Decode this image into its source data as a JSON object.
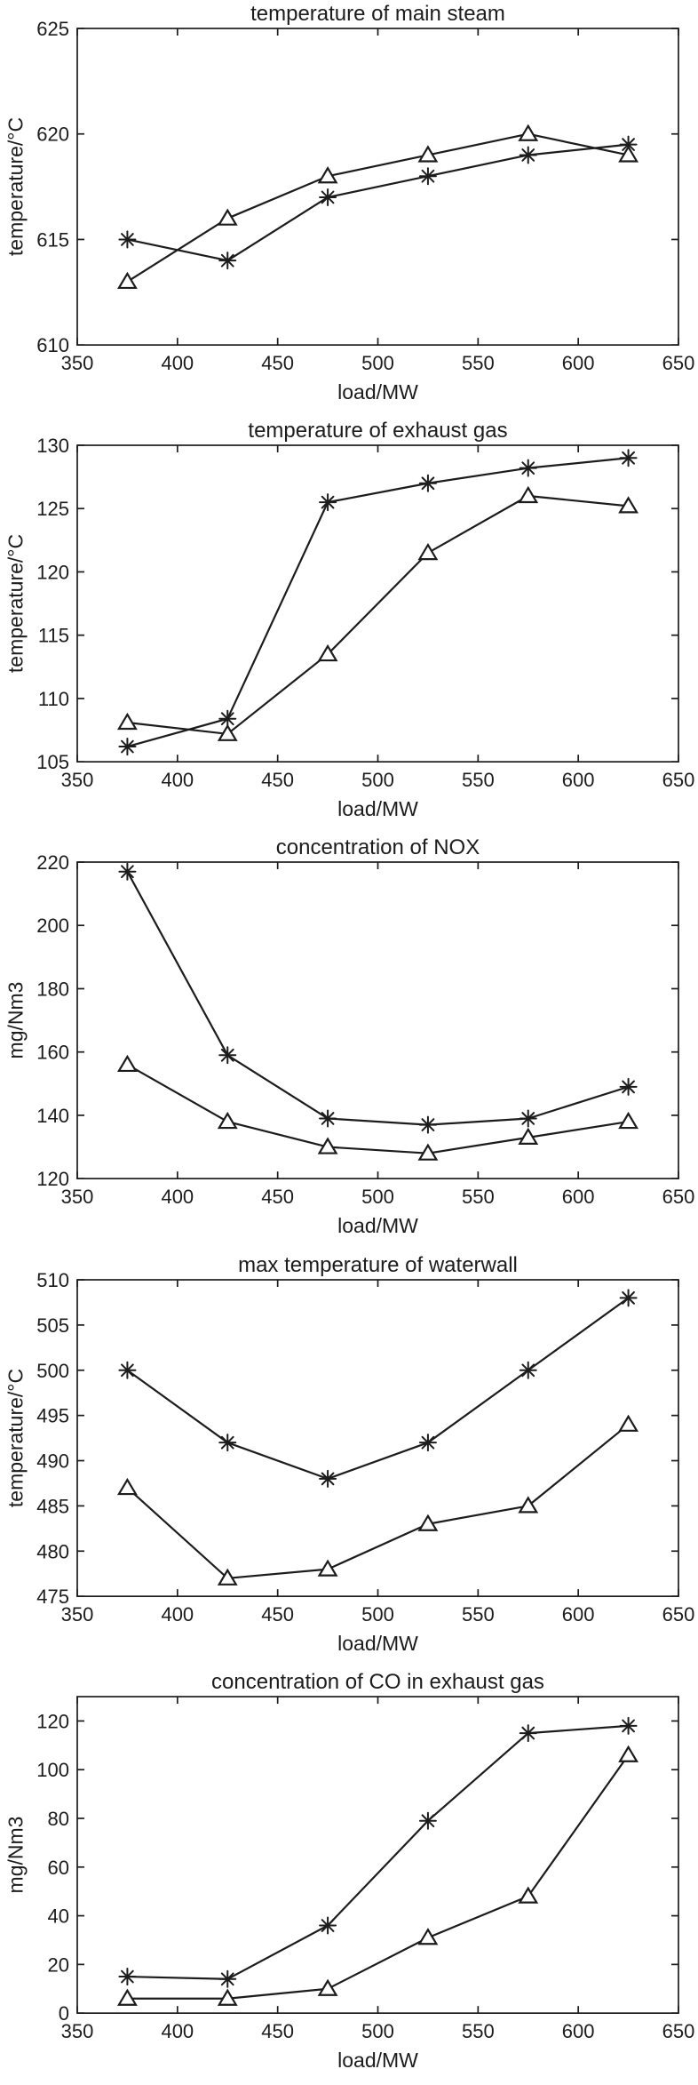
{
  "figure": {
    "background_color": "#ffffff",
    "line_color": "#1c1c1c",
    "text_color": "#1c1c1c"
  },
  "chart_data": [
    {
      "type": "line",
      "title": "temperature of main steam",
      "xlabel": "load/MW",
      "ylabel": "temperature/°C",
      "xlim": [
        350,
        650
      ],
      "ylim": [
        610,
        625
      ],
      "xticks": [
        350,
        400,
        450,
        500,
        550,
        600,
        650
      ],
      "yticks": [
        610,
        615,
        620,
        625
      ],
      "grid": false,
      "legend": "none",
      "x": [
        375,
        425,
        475,
        525,
        575,
        625
      ],
      "series": [
        {
          "name": "star-marker-series",
          "marker": "asterisk",
          "values": [
            615,
            614,
            617,
            618,
            619,
            619.5
          ]
        },
        {
          "name": "triangle-marker-series",
          "marker": "triangle",
          "values": [
            613,
            616,
            618,
            619,
            620,
            619
          ]
        }
      ]
    },
    {
      "type": "line",
      "title": "temperature of exhaust gas",
      "xlabel": "load/MW",
      "ylabel": "temperature/°C",
      "xlim": [
        350,
        650
      ],
      "ylim": [
        105,
        130
      ],
      "xticks": [
        350,
        400,
        450,
        500,
        550,
        600,
        650
      ],
      "yticks": [
        105,
        110,
        115,
        120,
        125,
        130
      ],
      "grid": false,
      "legend": "none",
      "x": [
        375,
        425,
        475,
        525,
        575,
        625
      ],
      "series": [
        {
          "name": "star-marker-series",
          "marker": "asterisk",
          "values": [
            106.2,
            108.4,
            125.5,
            127,
            128.2,
            129
          ]
        },
        {
          "name": "triangle-marker-series",
          "marker": "triangle",
          "values": [
            108.1,
            107.2,
            113.5,
            121.5,
            126,
            125.2
          ]
        }
      ]
    },
    {
      "type": "line",
      "title": "concentration of NOX",
      "xlabel": "load/MW",
      "ylabel": "mg/Nm3",
      "xlim": [
        350,
        650
      ],
      "ylim": [
        120,
        220
      ],
      "xticks": [
        350,
        400,
        450,
        500,
        550,
        600,
        650
      ],
      "yticks": [
        120,
        140,
        160,
        180,
        200,
        220
      ],
      "grid": false,
      "legend": "none",
      "x": [
        375,
        425,
        475,
        525,
        575,
        625
      ],
      "series": [
        {
          "name": "star-marker-series",
          "marker": "asterisk",
          "values": [
            217,
            159,
            139,
            137,
            139,
            149
          ]
        },
        {
          "name": "triangle-marker-series",
          "marker": "triangle",
          "values": [
            156,
            138,
            130,
            128,
            133,
            138
          ]
        }
      ]
    },
    {
      "type": "line",
      "title": "max temperature of waterwall",
      "xlabel": "load/MW",
      "ylabel": "temperature/°C",
      "xlim": [
        350,
        650
      ],
      "ylim": [
        475,
        510
      ],
      "xticks": [
        350,
        400,
        450,
        500,
        550,
        600,
        650
      ],
      "yticks": [
        475,
        480,
        485,
        490,
        495,
        500,
        505,
        510
      ],
      "grid": false,
      "legend": "none",
      "x": [
        375,
        425,
        475,
        525,
        575,
        625
      ],
      "series": [
        {
          "name": "star-marker-series",
          "marker": "asterisk",
          "values": [
            500,
            492,
            488,
            492,
            500,
            508
          ]
        },
        {
          "name": "triangle-marker-series",
          "marker": "triangle",
          "values": [
            487,
            477,
            478,
            483,
            485,
            494
          ]
        }
      ]
    },
    {
      "type": "line",
      "title": "concentration of CO in exhaust gas",
      "xlabel": "load/MW",
      "ylabel": "mg/Nm3",
      "xlim": [
        350,
        650
      ],
      "ylim": [
        0,
        130
      ],
      "xticks": [
        350,
        400,
        450,
        500,
        550,
        600,
        650
      ],
      "yticks": [
        0,
        20,
        40,
        60,
        80,
        100,
        120
      ],
      "grid": false,
      "legend": "none",
      "x": [
        375,
        425,
        475,
        525,
        575,
        625
      ],
      "series": [
        {
          "name": "star-marker-series",
          "marker": "asterisk",
          "values": [
            15,
            14,
            36,
            79,
            115,
            118
          ]
        },
        {
          "name": "triangle-marker-series",
          "marker": "triangle",
          "values": [
            6,
            6,
            10,
            31,
            48,
            106
          ]
        }
      ]
    }
  ]
}
